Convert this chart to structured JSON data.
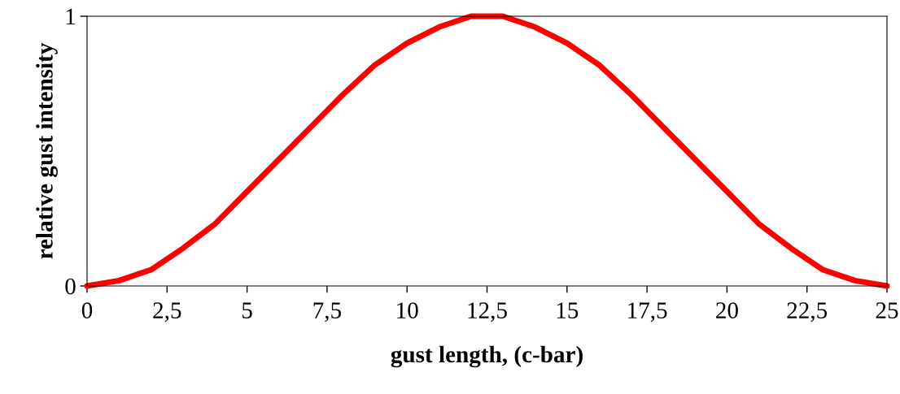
{
  "chart_data": {
    "type": "line",
    "xlabel": "gust length, (c-bar)",
    "ylabel": "relative gust intensity",
    "x": [
      0,
      1,
      2,
      3,
      4,
      5,
      6,
      7,
      8,
      9,
      10,
      11,
      12,
      12.5,
      13,
      14,
      15,
      16,
      17,
      18,
      19,
      20,
      21,
      22,
      23,
      24,
      25
    ],
    "series": [
      {
        "color": "#ff0000",
        "values": [
          0,
          0.02,
          0.06,
          0.14,
          0.23,
          0.35,
          0.47,
          0.59,
          0.71,
          0.82,
          0.9,
          0.96,
          1.0,
          1.0,
          1.0,
          0.96,
          0.9,
          0.82,
          0.71,
          0.59,
          0.47,
          0.35,
          0.23,
          0.14,
          0.06,
          0.02,
          0
        ]
      }
    ],
    "xlim": [
      0,
      25
    ],
    "ylim": [
      0,
      1
    ],
    "xticks": [
      0,
      {
        "value": 2.5,
        "label": "2,5"
      },
      5,
      {
        "value": 7.5,
        "label": "7,5"
      },
      10,
      {
        "value": 12.5,
        "label": "12,5"
      },
      15,
      {
        "value": 17.5,
        "label": "17,5"
      },
      20,
      {
        "value": 22.5,
        "label": "22,5"
      },
      25
    ],
    "yticks": [
      0,
      1
    ],
    "grid": false,
    "legend": false,
    "marker": "none",
    "line_style": "solid"
  }
}
